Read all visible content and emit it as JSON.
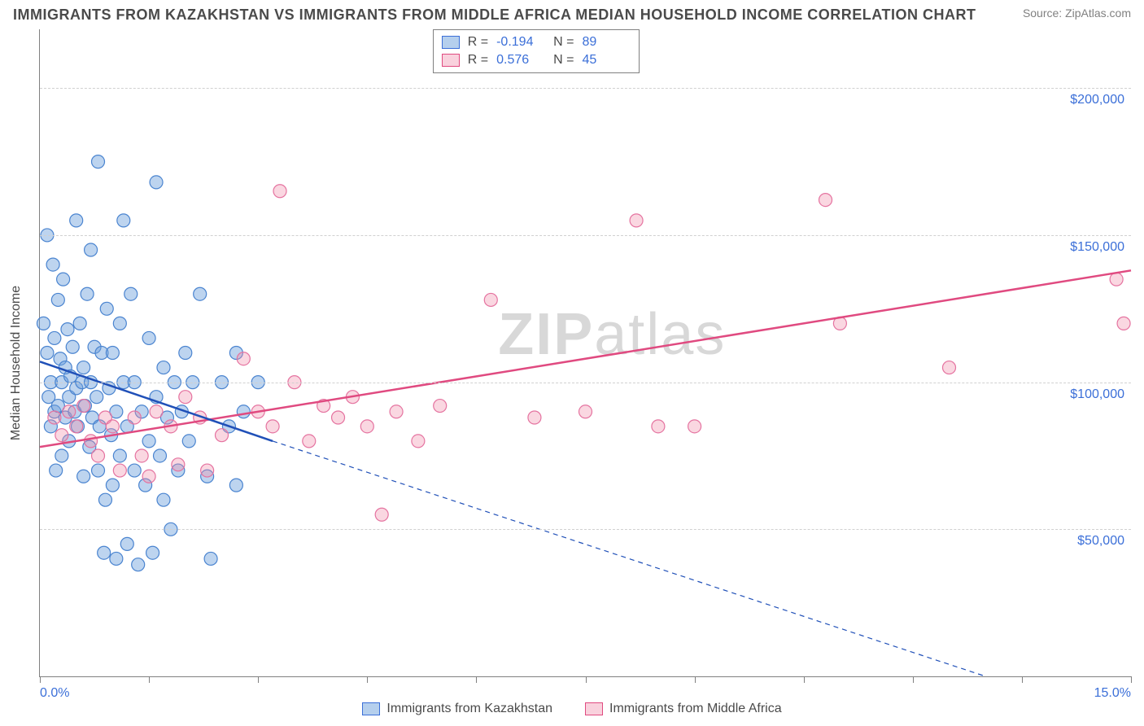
{
  "title": "IMMIGRANTS FROM KAZAKHSTAN VS IMMIGRANTS FROM MIDDLE AFRICA MEDIAN HOUSEHOLD INCOME CORRELATION CHART",
  "source": "Source: ZipAtlas.com",
  "watermark_bold": "ZIP",
  "watermark_light": "atlas",
  "ylabel": "Median Household Income",
  "x_min": 0.0,
  "x_max": 15.0,
  "x_min_label": "0.0%",
  "x_max_label": "15.0%",
  "x_ticks": [
    0,
    1.5,
    3.0,
    4.5,
    6.0,
    7.5,
    9.0,
    10.5,
    12.0,
    13.5,
    15.0
  ],
  "y_min": 0,
  "y_max": 220000,
  "y_gridlines": [
    {
      "value": 50000,
      "label": "$50,000"
    },
    {
      "value": 100000,
      "label": "$100,000"
    },
    {
      "value": 150000,
      "label": "$150,000"
    },
    {
      "value": 200000,
      "label": "$200,000"
    }
  ],
  "colors": {
    "blue_fill": "rgba(108,160,220,0.45)",
    "blue_stroke": "#4a84d0",
    "pink_fill": "rgba(240,140,170,0.35)",
    "pink_stroke": "#e573a0",
    "blue_line": "#2050b8",
    "pink_line": "#e04a80",
    "axis_text": "#3b6fd8",
    "grid": "#d0d0d0"
  },
  "marker_radius": 8,
  "line_width_solid": 2.5,
  "line_width_dash": 1.2,
  "series_a": {
    "name": "Immigrants from Kazakhstan",
    "R_label": "R =",
    "R": "-0.194",
    "N_label": "N =",
    "N": "89",
    "trend_solid": {
      "x1": 0.0,
      "y1": 107000,
      "x2": 3.2,
      "y2": 80000
    },
    "trend_dash": {
      "x1": 3.2,
      "y1": 80000,
      "x2": 13.0,
      "y2": 0
    },
    "points": [
      [
        0.05,
        120000
      ],
      [
        0.1,
        110000
      ],
      [
        0.1,
        150000
      ],
      [
        0.12,
        95000
      ],
      [
        0.15,
        85000
      ],
      [
        0.15,
        100000
      ],
      [
        0.18,
        140000
      ],
      [
        0.2,
        90000
      ],
      [
        0.2,
        115000
      ],
      [
        0.22,
        70000
      ],
      [
        0.25,
        128000
      ],
      [
        0.25,
        92000
      ],
      [
        0.28,
        108000
      ],
      [
        0.3,
        75000
      ],
      [
        0.3,
        100000
      ],
      [
        0.32,
        135000
      ],
      [
        0.35,
        88000
      ],
      [
        0.35,
        105000
      ],
      [
        0.38,
        118000
      ],
      [
        0.4,
        80000
      ],
      [
        0.4,
        95000
      ],
      [
        0.42,
        102000
      ],
      [
        0.45,
        112000
      ],
      [
        0.48,
        90000
      ],
      [
        0.5,
        155000
      ],
      [
        0.5,
        98000
      ],
      [
        0.52,
        85000
      ],
      [
        0.55,
        120000
      ],
      [
        0.58,
        100000
      ],
      [
        0.6,
        68000
      ],
      [
        0.6,
        105000
      ],
      [
        0.62,
        92000
      ],
      [
        0.65,
        130000
      ],
      [
        0.68,
        78000
      ],
      [
        0.7,
        145000
      ],
      [
        0.7,
        100000
      ],
      [
        0.72,
        88000
      ],
      [
        0.75,
        112000
      ],
      [
        0.78,
        95000
      ],
      [
        0.8,
        175000
      ],
      [
        0.8,
        70000
      ],
      [
        0.82,
        85000
      ],
      [
        0.85,
        110000
      ],
      [
        0.88,
        42000
      ],
      [
        0.9,
        60000
      ],
      [
        0.92,
        125000
      ],
      [
        0.95,
        98000
      ],
      [
        0.98,
        82000
      ],
      [
        1.0,
        110000
      ],
      [
        1.0,
        65000
      ],
      [
        1.05,
        90000
      ],
      [
        1.05,
        40000
      ],
      [
        1.1,
        120000
      ],
      [
        1.1,
        75000
      ],
      [
        1.15,
        100000
      ],
      [
        1.15,
        155000
      ],
      [
        1.2,
        45000
      ],
      [
        1.2,
        85000
      ],
      [
        1.25,
        130000
      ],
      [
        1.3,
        70000
      ],
      [
        1.3,
        100000
      ],
      [
        1.35,
        38000
      ],
      [
        1.4,
        90000
      ],
      [
        1.45,
        65000
      ],
      [
        1.5,
        115000
      ],
      [
        1.5,
        80000
      ],
      [
        1.55,
        42000
      ],
      [
        1.6,
        95000
      ],
      [
        1.6,
        168000
      ],
      [
        1.65,
        75000
      ],
      [
        1.7,
        60000
      ],
      [
        1.7,
        105000
      ],
      [
        1.75,
        88000
      ],
      [
        1.8,
        50000
      ],
      [
        1.85,
        100000
      ],
      [
        1.9,
        70000
      ],
      [
        1.95,
        90000
      ],
      [
        2.0,
        110000
      ],
      [
        2.05,
        80000
      ],
      [
        2.1,
        100000
      ],
      [
        2.2,
        130000
      ],
      [
        2.3,
        68000
      ],
      [
        2.35,
        40000
      ],
      [
        2.5,
        100000
      ],
      [
        2.6,
        85000
      ],
      [
        2.7,
        65000
      ],
      [
        2.7,
        110000
      ],
      [
        2.8,
        90000
      ],
      [
        3.0,
        100000
      ]
    ]
  },
  "series_b": {
    "name": "Immigrants from Middle Africa",
    "R_label": "R =",
    "R": "0.576",
    "N_label": "N =",
    "N": "45",
    "trend_solid": {
      "x1": 0.0,
      "y1": 78000,
      "x2": 15.0,
      "y2": 138000
    },
    "points": [
      [
        0.2,
        88000
      ],
      [
        0.3,
        82000
      ],
      [
        0.4,
        90000
      ],
      [
        0.5,
        85000
      ],
      [
        0.6,
        92000
      ],
      [
        0.7,
        80000
      ],
      [
        0.8,
        75000
      ],
      [
        0.9,
        88000
      ],
      [
        1.0,
        85000
      ],
      [
        1.1,
        70000
      ],
      [
        1.3,
        88000
      ],
      [
        1.4,
        75000
      ],
      [
        1.5,
        68000
      ],
      [
        1.6,
        90000
      ],
      [
        1.8,
        85000
      ],
      [
        1.9,
        72000
      ],
      [
        2.0,
        95000
      ],
      [
        2.2,
        88000
      ],
      [
        2.3,
        70000
      ],
      [
        2.5,
        82000
      ],
      [
        2.8,
        108000
      ],
      [
        3.0,
        90000
      ],
      [
        3.2,
        85000
      ],
      [
        3.3,
        165000
      ],
      [
        3.5,
        100000
      ],
      [
        3.7,
        80000
      ],
      [
        3.9,
        92000
      ],
      [
        4.1,
        88000
      ],
      [
        4.3,
        95000
      ],
      [
        4.5,
        85000
      ],
      [
        4.7,
        55000
      ],
      [
        4.9,
        90000
      ],
      [
        5.2,
        80000
      ],
      [
        5.5,
        92000
      ],
      [
        6.2,
        128000
      ],
      [
        6.8,
        88000
      ],
      [
        7.5,
        90000
      ],
      [
        8.2,
        155000
      ],
      [
        8.5,
        85000
      ],
      [
        9.0,
        85000
      ],
      [
        10.8,
        162000
      ],
      [
        11.0,
        120000
      ],
      [
        12.5,
        105000
      ],
      [
        14.8,
        135000
      ],
      [
        14.9,
        120000
      ]
    ]
  }
}
